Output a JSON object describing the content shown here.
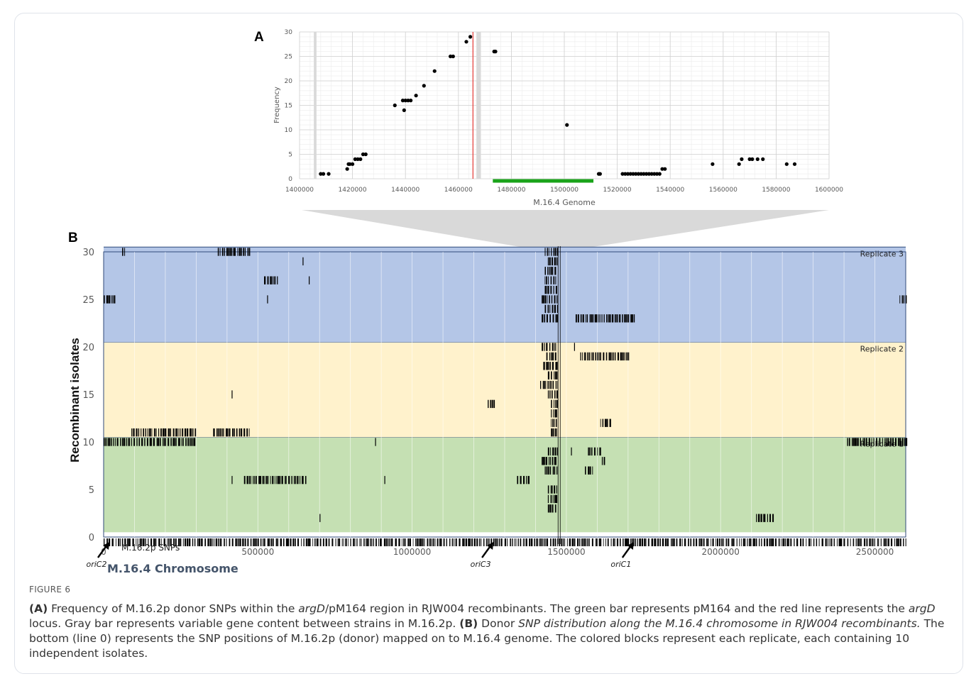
{
  "chart_data": [
    {
      "panel_label": "A",
      "type": "scatter",
      "xlabel": "M.16.4  Genome",
      "ylabel": "Frequency",
      "xlim": [
        1400000,
        1600000
      ],
      "ylim": [
        0,
        30
      ],
      "x_ticks": [
        "1400000",
        "1420000",
        "1440000",
        "1460000",
        "1480000",
        "1500000",
        "1520000",
        "1540000",
        "1560000",
        "1580000",
        "1600000"
      ],
      "y_ticks": [
        "0",
        "5",
        "10",
        "15",
        "20",
        "25",
        "30"
      ],
      "grid": true,
      "markers": {
        "red_line_argD_x": 1465500,
        "green_bar_pM164_x": [
          1473000,
          1511000
        ],
        "gray_bars_x": [
          [
            1405400,
            1406400
          ],
          [
            1466800,
            1468500
          ]
        ]
      },
      "colors": {
        "points": "#000000",
        "red_line": "#e53935",
        "green_bar": "#1aa31a",
        "gray_bar": "#d9d9d9"
      },
      "points": [
        [
          1408000,
          1
        ],
        [
          1409000,
          1
        ],
        [
          1411000,
          1
        ],
        [
          1418000,
          2
        ],
        [
          1418500,
          3
        ],
        [
          1419000,
          3
        ],
        [
          1420000,
          3
        ],
        [
          1421000,
          4
        ],
        [
          1422000,
          4
        ],
        [
          1423000,
          4
        ],
        [
          1424000,
          5
        ],
        [
          1425000,
          5
        ],
        [
          1436000,
          15
        ],
        [
          1439000,
          16
        ],
        [
          1439500,
          14
        ],
        [
          1440000,
          16
        ],
        [
          1441000,
          16
        ],
        [
          1442000,
          16
        ],
        [
          1444000,
          17
        ],
        [
          1447000,
          19
        ],
        [
          1451000,
          22
        ],
        [
          1457000,
          25
        ],
        [
          1458000,
          25
        ],
        [
          1463000,
          28
        ],
        [
          1464500,
          29
        ],
        [
          1473500,
          26
        ],
        [
          1474000,
          26
        ],
        [
          1501000,
          11
        ],
        [
          1513000,
          1
        ],
        [
          1513500,
          1
        ],
        [
          1522000,
          1
        ],
        [
          1523000,
          1
        ],
        [
          1524000,
          1
        ],
        [
          1525000,
          1
        ],
        [
          1526000,
          1
        ],
        [
          1527000,
          1
        ],
        [
          1528000,
          1
        ],
        [
          1529000,
          1
        ],
        [
          1530000,
          1
        ],
        [
          1531000,
          1
        ],
        [
          1532000,
          1
        ],
        [
          1533000,
          1
        ],
        [
          1534000,
          1
        ],
        [
          1535000,
          1
        ],
        [
          1536000,
          1
        ],
        [
          1537000,
          2
        ],
        [
          1538000,
          2
        ],
        [
          1556000,
          3
        ],
        [
          1566000,
          3
        ],
        [
          1567000,
          4
        ],
        [
          1570000,
          4
        ],
        [
          1571000,
          4
        ],
        [
          1573000,
          4
        ],
        [
          1575000,
          4
        ],
        [
          1584000,
          3
        ],
        [
          1587000,
          3
        ]
      ]
    },
    {
      "panel_label": "B",
      "type": "heatmap",
      "xlabel": "M.16.4 Chromosome",
      "ylabel": "Recombinant isolates",
      "xlim": [
        0,
        2600000
      ],
      "ylim": [
        0,
        30
      ],
      "x_ticks": [
        "0",
        "500000",
        "1000000",
        "1500000",
        "2000000",
        "2500000"
      ],
      "y_ticks": [
        "0",
        "5",
        "10",
        "15",
        "20",
        "25",
        "30"
      ],
      "bands": [
        {
          "name": "Replicate 1",
          "rows": [
            1,
            10
          ],
          "color": "#c5e0b3"
        },
        {
          "name": "Replicate 2",
          "rows": [
            11,
            20
          ],
          "color": "#fff2cc"
        },
        {
          "name": "Replicate 3",
          "rows": [
            21,
            30
          ],
          "color": "#b4c6e7"
        }
      ],
      "donor_row_label": "M.16.2p SNPs",
      "origins": [
        {
          "name": "oriC2",
          "position": 0
        },
        {
          "name": "oriC3",
          "position": 1245000
        },
        {
          "name": "oriC1",
          "position": 1700000
        }
      ],
      "segments": [
        {
          "row": 30,
          "start": 60000,
          "end": 70000
        },
        {
          "row": 30,
          "start": 370000,
          "end": 475000
        },
        {
          "row": 30,
          "start": 1430000,
          "end": 1470000
        },
        {
          "row": 29,
          "start": 645000,
          "end": 650000
        },
        {
          "row": 29,
          "start": 1440000,
          "end": 1470000
        },
        {
          "row": 28,
          "start": 1430000,
          "end": 1470000
        },
        {
          "row": 27,
          "start": 520000,
          "end": 565000
        },
        {
          "row": 27,
          "start": 665000,
          "end": 670000
        },
        {
          "row": 27,
          "start": 1430000,
          "end": 1470000
        },
        {
          "row": 26,
          "start": 1430000,
          "end": 1470000
        },
        {
          "row": 25,
          "start": 0,
          "end": 35000
        },
        {
          "row": 25,
          "start": 530000,
          "end": 535000
        },
        {
          "row": 25,
          "start": 1420000,
          "end": 1470000
        },
        {
          "row": 25,
          "start": 2580000,
          "end": 2600000
        },
        {
          "row": 24,
          "start": 1430000,
          "end": 1470000
        },
        {
          "row": 23,
          "start": 1420000,
          "end": 1470000
        },
        {
          "row": 23,
          "start": 1530000,
          "end": 1720000
        },
        {
          "row": 20,
          "start": 1420000,
          "end": 1470000
        },
        {
          "row": 20,
          "start": 1525000,
          "end": 1530000
        },
        {
          "row": 19,
          "start": 1435000,
          "end": 1470000
        },
        {
          "row": 19,
          "start": 1545000,
          "end": 1700000
        },
        {
          "row": 18,
          "start": 1425000,
          "end": 1470000
        },
        {
          "row": 17,
          "start": 1440000,
          "end": 1470000
        },
        {
          "row": 16,
          "start": 1415000,
          "end": 1470000
        },
        {
          "row": 15,
          "start": 415000,
          "end": 420000
        },
        {
          "row": 15,
          "start": 1440000,
          "end": 1470000
        },
        {
          "row": 14,
          "start": 1245000,
          "end": 1265000
        },
        {
          "row": 14,
          "start": 1450000,
          "end": 1470000
        },
        {
          "row": 13,
          "start": 1450000,
          "end": 1470000
        },
        {
          "row": 12,
          "start": 1450000,
          "end": 1470000
        },
        {
          "row": 12,
          "start": 1610000,
          "end": 1640000
        },
        {
          "row": 11,
          "start": 90000,
          "end": 300000
        },
        {
          "row": 11,
          "start": 355000,
          "end": 475000
        },
        {
          "row": 11,
          "start": 1450000,
          "end": 1470000
        },
        {
          "row": 10,
          "start": 0,
          "end": 300000
        },
        {
          "row": 10,
          "start": 880000,
          "end": 885000
        },
        {
          "row": 10,
          "start": 2410000,
          "end": 2600000
        },
        {
          "row": 9,
          "start": 1440000,
          "end": 1470000
        },
        {
          "row": 9,
          "start": 1515000,
          "end": 1520000
        },
        {
          "row": 9,
          "start": 1570000,
          "end": 1610000
        },
        {
          "row": 8,
          "start": 1420000,
          "end": 1470000
        },
        {
          "row": 8,
          "start": 1615000,
          "end": 1625000
        },
        {
          "row": 7,
          "start": 1430000,
          "end": 1470000
        },
        {
          "row": 7,
          "start": 1560000,
          "end": 1585000
        },
        {
          "row": 6,
          "start": 415000,
          "end": 420000
        },
        {
          "row": 6,
          "start": 455000,
          "end": 660000
        },
        {
          "row": 6,
          "start": 910000,
          "end": 915000
        },
        {
          "row": 6,
          "start": 1340000,
          "end": 1375000
        },
        {
          "row": 5,
          "start": 1440000,
          "end": 1470000
        },
        {
          "row": 4,
          "start": 1440000,
          "end": 1470000
        },
        {
          "row": 3,
          "start": 1440000,
          "end": 1470000
        },
        {
          "row": 2,
          "start": 700000,
          "end": 705000
        },
        {
          "row": 2,
          "start": 2115000,
          "end": 2175000
        }
      ],
      "vertical_line_x": 1480000
    }
  ],
  "figure": {
    "label": "FIGURE 6",
    "caption_a_label": "(A)",
    "caption_a_1": " Frequency of M.16.2p donor SNPs within the ",
    "caption_a_argD1": "argD",
    "caption_a_2": "/pM164 region in RJW004 recombinants. The green bar represents pM164 and the red line represents the ",
    "caption_a_argD2": "argD",
    "caption_a_3": " locus. Gray bar represents variable gene content between strains in M.16.2p. ",
    "caption_b_label": "(B)",
    "caption_b_1": " Donor ",
    "caption_b_ital": "SNP distribution along the M.16.4 chromosome in RJW004 recombinants.",
    "caption_b_2": " The bottom (line 0) represents the SNP positions of M.16.2p (donor) mapped on to M.16.4 genome. The colored blocks represent each replicate, each containing 10 independent isolates."
  }
}
